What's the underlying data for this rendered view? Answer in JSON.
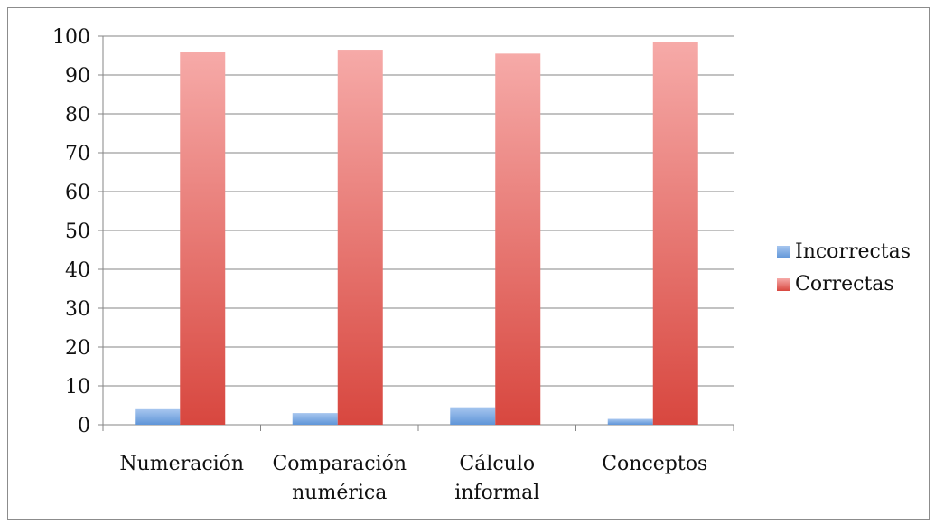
{
  "chart_data": {
    "type": "bar",
    "categories": [
      "Numeración",
      "Comparación numérica",
      "Cálculo informal",
      "Conceptos"
    ],
    "category_label_lines": [
      [
        "Numeración"
      ],
      [
        "Comparación",
        "numérica"
      ],
      [
        "Cálculo",
        "informal"
      ],
      [
        "Conceptos"
      ]
    ],
    "series": [
      {
        "name": "Incorrectas",
        "values": [
          4,
          3,
          4.5,
          1.5
        ],
        "color": "#4f81bd",
        "light": "#a7c6ef",
        "dark": "#5f95d8"
      },
      {
        "name": "Correctas",
        "values": [
          96,
          96.5,
          95.5,
          98.5
        ],
        "color": "#c0504d",
        "light": "#f6aaa8",
        "dark": "#d8473f"
      }
    ],
    "ylim": [
      0,
      100
    ],
    "yticks": [
      "0",
      "10",
      "20",
      "30",
      "40",
      "50",
      "60",
      "70",
      "80",
      "90",
      "100"
    ],
    "xlabel": "",
    "ylabel": "",
    "title": "",
    "grid": true,
    "legend_position": "right"
  }
}
